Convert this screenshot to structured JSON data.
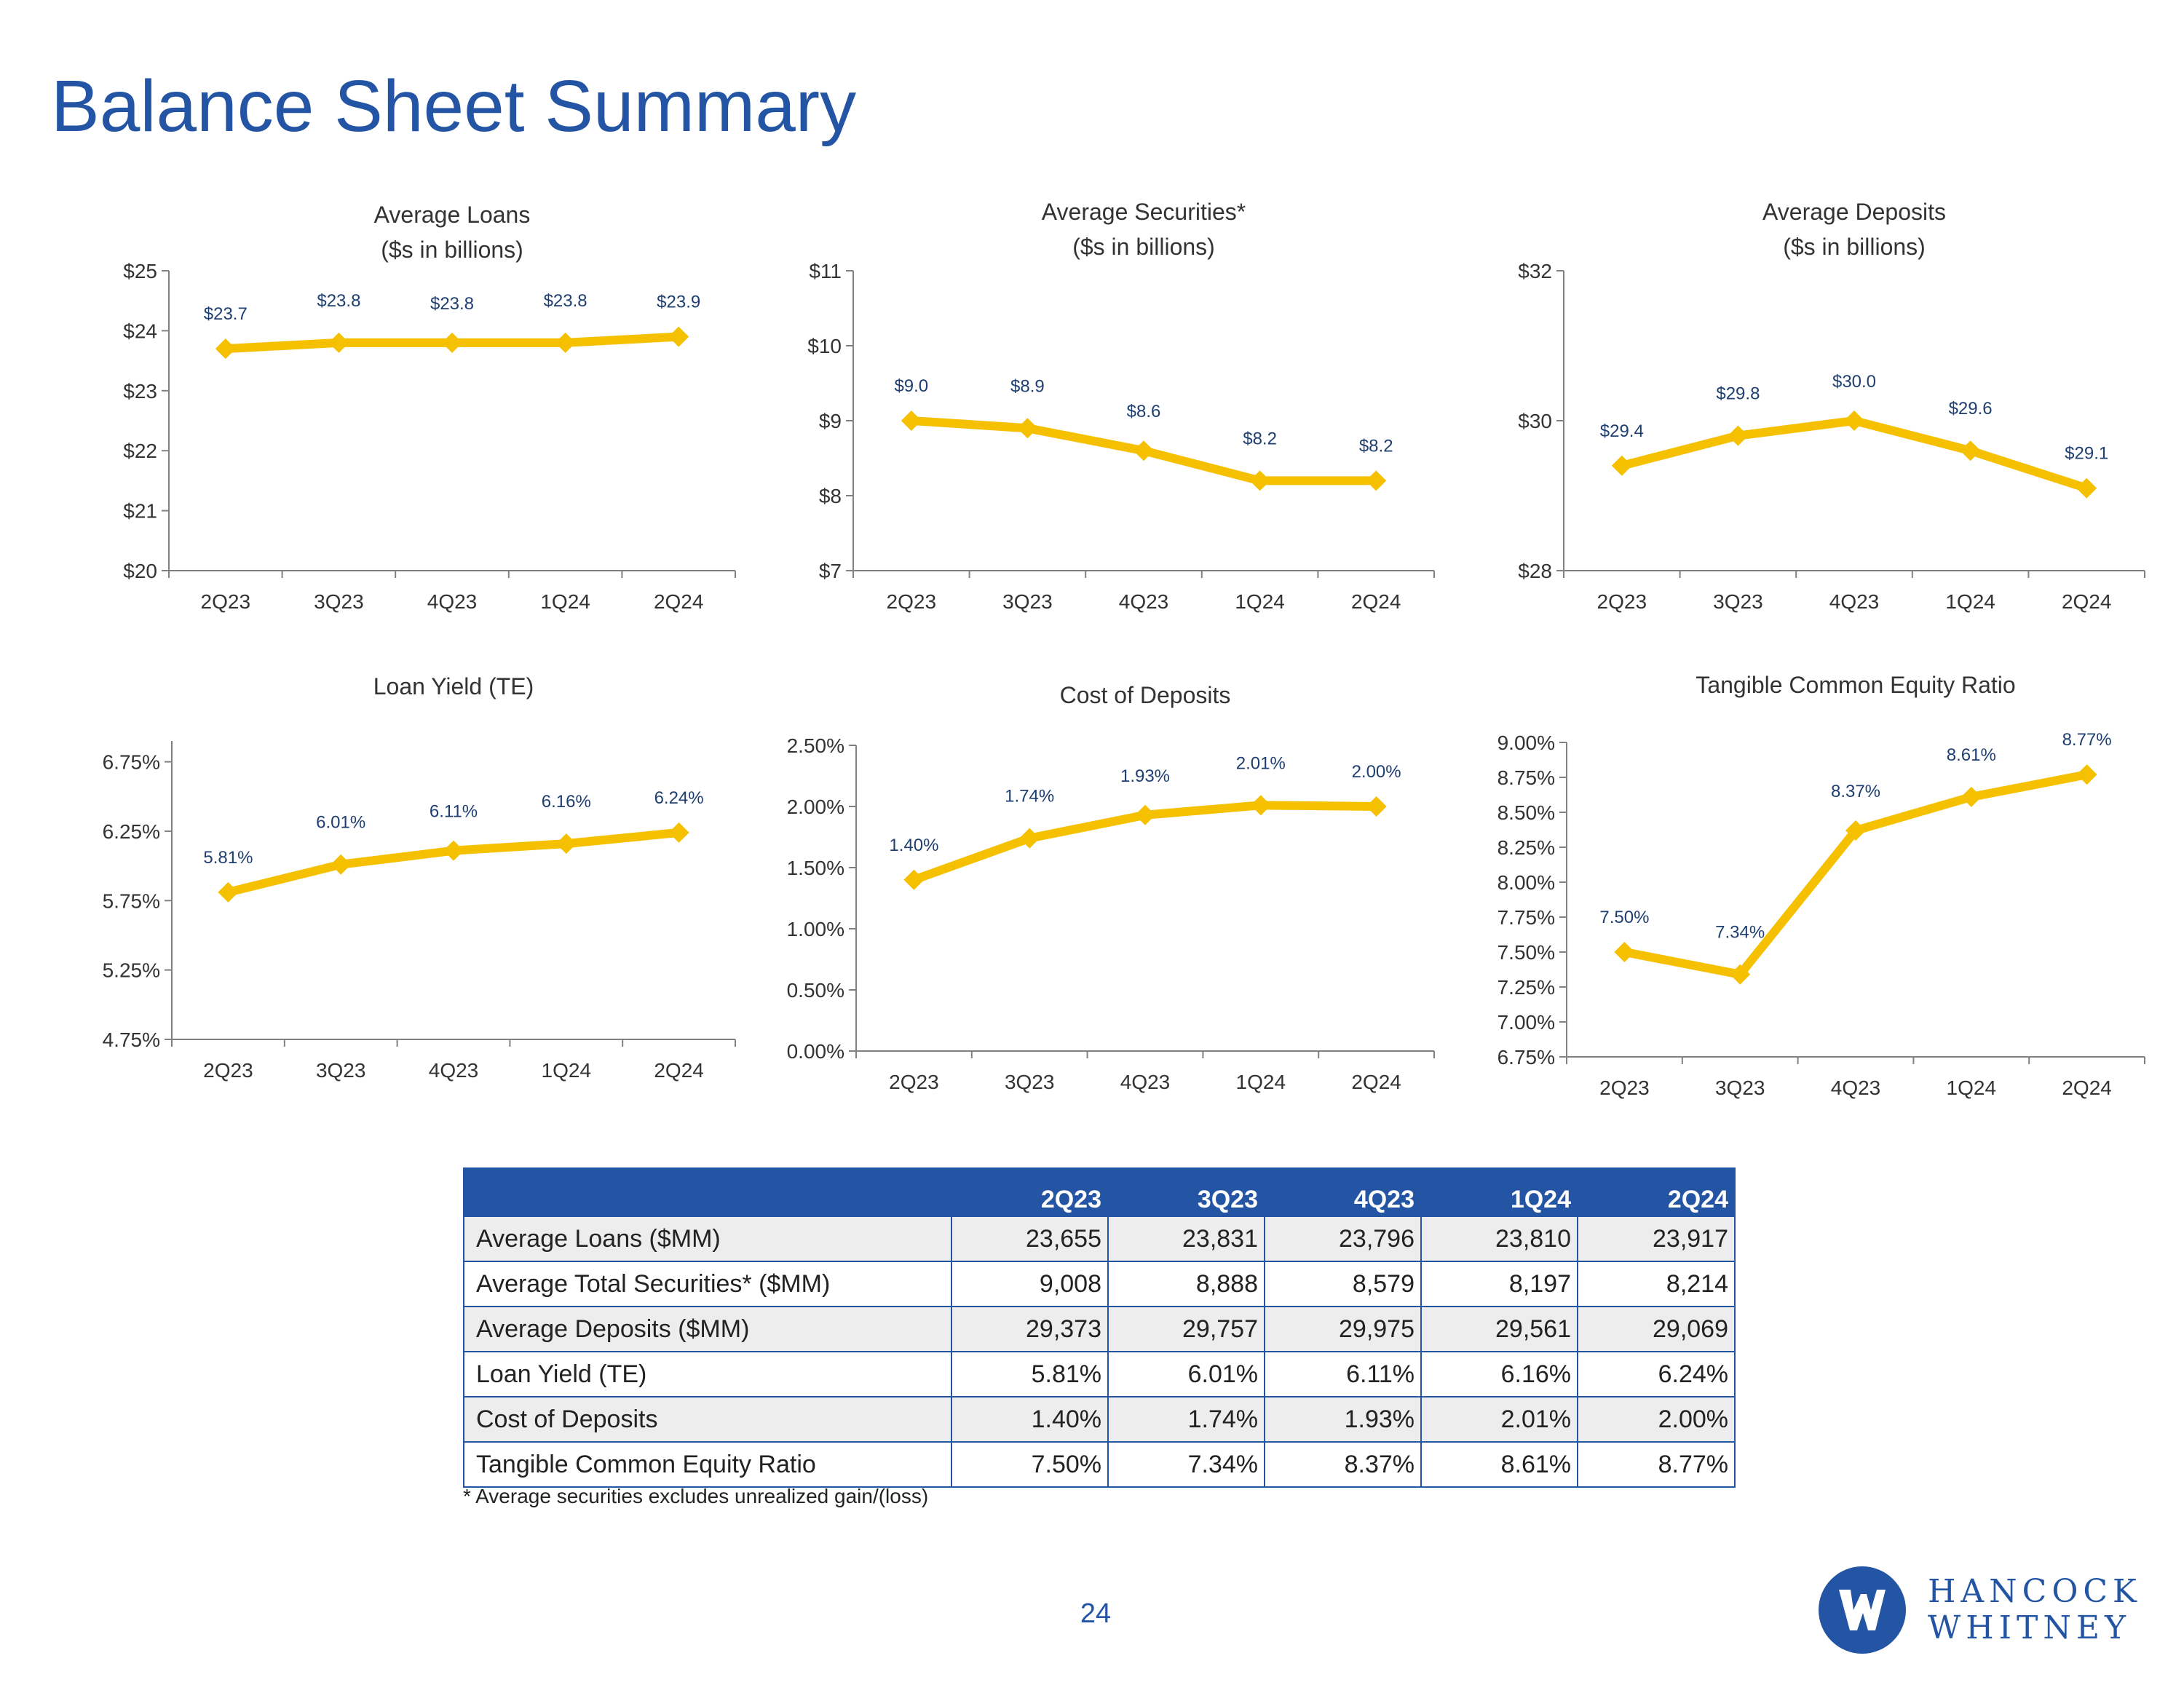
{
  "page": {
    "title": "Balance Sheet Summary",
    "page_number": "24",
    "footnote": "* Average securities excludes unrealized gain/(loss)",
    "logo": {
      "line1": "HANCOCK",
      "line2": "WHITNEY",
      "icon": "hw-logo-icon"
    }
  },
  "colors": {
    "accent": "#2455a4",
    "series": "#f5c000",
    "label": "#1f3f70",
    "shade": "#ededed"
  },
  "chart_data": [
    {
      "id": "avg-loans",
      "type": "line",
      "title": [
        "Average Loans",
        "($s in billions)"
      ],
      "categories": [
        "2Q23",
        "3Q23",
        "4Q23",
        "1Q24",
        "2Q24"
      ],
      "values": [
        23.7,
        23.8,
        23.8,
        23.8,
        23.9
      ],
      "data_labels": [
        "$23.7",
        "$23.8",
        "$23.8",
        "$23.8",
        "$23.9"
      ],
      "ylim": [
        20,
        25
      ],
      "yticks": [
        20,
        21,
        22,
        23,
        24,
        25
      ],
      "ytick_labels": [
        "$20",
        "$21",
        "$22",
        "$23",
        "$24",
        "$25"
      ]
    },
    {
      "id": "avg-securities",
      "type": "line",
      "title": [
        "Average Securities*",
        "($s in billions)"
      ],
      "categories": [
        "2Q23",
        "3Q23",
        "4Q23",
        "1Q24",
        "2Q24"
      ],
      "values": [
        9.0,
        8.9,
        8.6,
        8.2,
        8.2
      ],
      "data_labels": [
        "$9.0",
        "$8.9",
        "$8.6",
        "$8.2",
        "$8.2"
      ],
      "ylim": [
        7,
        11
      ],
      "yticks": [
        7,
        8,
        9,
        10,
        11
      ],
      "ytick_labels": [
        "$7",
        "$8",
        "$9",
        "$10",
        "$11"
      ]
    },
    {
      "id": "avg-deposits",
      "type": "line",
      "title": [
        "Average Deposits",
        "($s in billions)"
      ],
      "categories": [
        "2Q23",
        "3Q23",
        "4Q23",
        "1Q24",
        "2Q24"
      ],
      "values": [
        29.4,
        29.8,
        30.0,
        29.6,
        29.1
      ],
      "data_labels": [
        "$29.4",
        "$29.8",
        "$30.0",
        "$29.6",
        "$29.1"
      ],
      "ylim": [
        28,
        32
      ],
      "yticks": [
        28,
        30,
        32
      ],
      "ytick_labels": [
        "$28",
        "$30",
        "$32"
      ]
    },
    {
      "id": "loan-yield",
      "type": "line",
      "title": [
        "Loan Yield (TE)"
      ],
      "categories": [
        "2Q23",
        "3Q23",
        "4Q23",
        "1Q24",
        "2Q24"
      ],
      "values": [
        5.81,
        6.01,
        6.11,
        6.16,
        6.24
      ],
      "data_labels": [
        "5.81%",
        "6.01%",
        "6.11%",
        "6.16%",
        "6.24%"
      ],
      "ylim": [
        4.75,
        6.9
      ],
      "yticks": [
        4.75,
        5.25,
        5.75,
        6.25,
        6.75
      ],
      "ytick_labels": [
        "4.75%",
        "5.25%",
        "5.75%",
        "6.25%",
        "6.75%"
      ]
    },
    {
      "id": "cost-of-deposits",
      "type": "line",
      "title": [
        "Cost of Deposits"
      ],
      "categories": [
        "2Q23",
        "3Q23",
        "4Q23",
        "1Q24",
        "2Q24"
      ],
      "values": [
        1.4,
        1.74,
        1.93,
        2.01,
        2.0
      ],
      "data_labels": [
        "1.40%",
        "1.74%",
        "1.93%",
        "2.01%",
        "2.00%"
      ],
      "ylim": [
        0,
        2.5
      ],
      "yticks": [
        0,
        0.5,
        1.0,
        1.5,
        2.0,
        2.5
      ],
      "ytick_labels": [
        "0.00%",
        "0.50%",
        "1.00%",
        "1.50%",
        "2.00%",
        "2.50%"
      ]
    },
    {
      "id": "tce-ratio",
      "type": "line",
      "title": [
        "Tangible Common Equity Ratio"
      ],
      "categories": [
        "2Q23",
        "3Q23",
        "4Q23",
        "1Q24",
        "2Q24"
      ],
      "values": [
        7.5,
        7.34,
        8.37,
        8.61,
        8.77
      ],
      "data_labels": [
        "7.50%",
        "7.34%",
        "8.37%",
        "8.61%",
        "8.77%"
      ],
      "ylim": [
        6.75,
        9.0
      ],
      "yticks": [
        6.75,
        7.0,
        7.25,
        7.5,
        7.75,
        8.0,
        8.25,
        8.5,
        8.75,
        9.0
      ],
      "ytick_labels": [
        "6.75%",
        "7.00%",
        "7.25%",
        "7.50%",
        "7.75%",
        "8.00%",
        "8.25%",
        "8.50%",
        "8.75%",
        "9.00%"
      ]
    }
  ],
  "table": {
    "columns": [
      "2Q23",
      "3Q23",
      "4Q23",
      "1Q24",
      "2Q24"
    ],
    "rows": [
      {
        "label": "Average Loans ($MM)",
        "values": [
          "23,655",
          "23,831",
          "23,796",
          "23,810",
          "23,917"
        ]
      },
      {
        "label": "Average Total Securities* ($MM)",
        "values": [
          "9,008",
          "8,888",
          "8,579",
          "8,197",
          "8,214"
        ]
      },
      {
        "label": "Average Deposits ($MM)",
        "values": [
          "29,373",
          "29,757",
          "29,975",
          "29,561",
          "29,069"
        ]
      },
      {
        "label": "Loan Yield (TE)",
        "values": [
          "5.81%",
          "6.01%",
          "6.11%",
          "6.16%",
          "6.24%"
        ]
      },
      {
        "label": "Cost of Deposits",
        "values": [
          "1.40%",
          "1.74%",
          "1.93%",
          "2.01%",
          "2.00%"
        ]
      },
      {
        "label": "Tangible Common Equity Ratio",
        "values": [
          "7.50%",
          "7.34%",
          "8.37%",
          "8.61%",
          "8.77%"
        ]
      }
    ]
  }
}
